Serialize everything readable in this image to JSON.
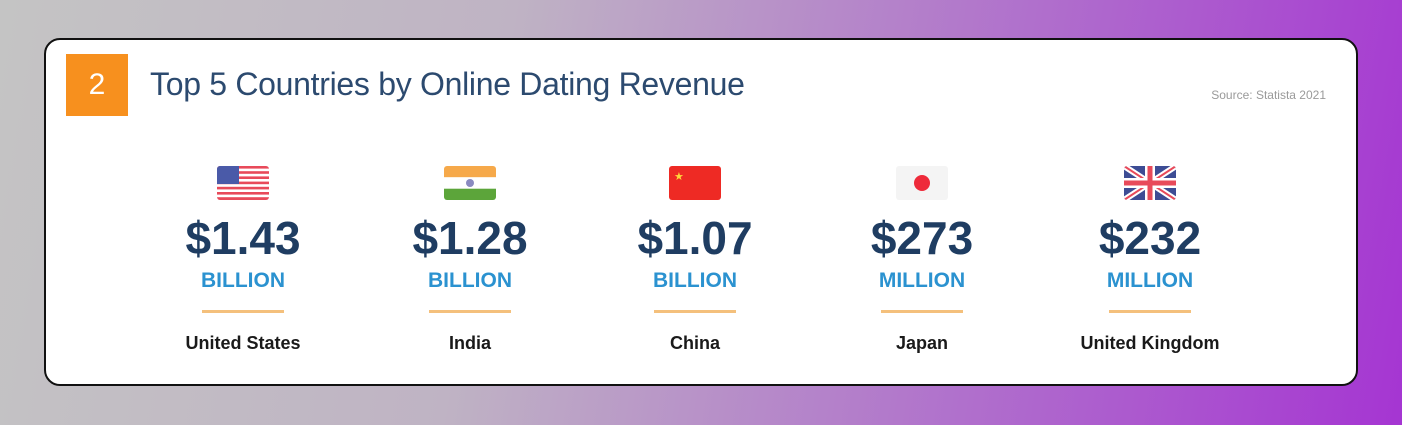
{
  "badge_number": "2",
  "title": "Top 5 Countries by Online Dating Revenue",
  "source": "Source: Statista 2021",
  "colors": {
    "badge": "#f7901e",
    "amount": "#1f3d62",
    "unit": "#2b92d0",
    "divider": "#f4c07c"
  },
  "countries": [
    {
      "flag": "us-flag-icon",
      "amount": "$1.43",
      "unit": "BILLION",
      "name": "United States"
    },
    {
      "flag": "india-flag-icon",
      "amount": "$1.28",
      "unit": "BILLION",
      "name": "India"
    },
    {
      "flag": "china-flag-icon",
      "amount": "$1.07",
      "unit": "BILLION",
      "name": "China"
    },
    {
      "flag": "japan-flag-icon",
      "amount": "$273",
      "unit": "MILLION",
      "name": "Japan"
    },
    {
      "flag": "uk-flag-icon",
      "amount": "$232",
      "unit": "MILLION",
      "name": "United Kingdom"
    }
  ]
}
